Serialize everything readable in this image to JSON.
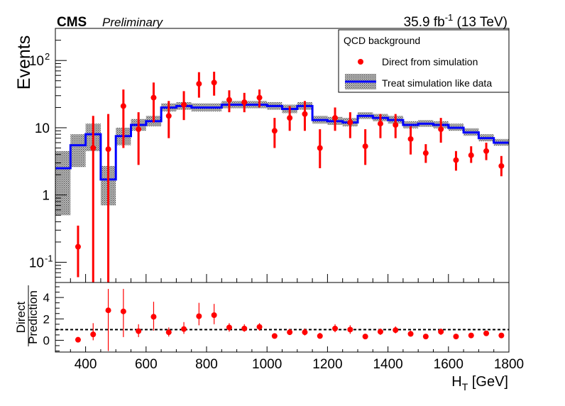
{
  "header": {
    "experiment": "CMS",
    "status": "Preliminary",
    "lumi_value": "35.9 fb",
    "lumi_exp": "-1",
    "lumi_energy": " (13 TeV)"
  },
  "legend": {
    "title": "QCD background",
    "direct_label": "Direct from simulation",
    "treat_label": "Treat simulation like data"
  },
  "colors": {
    "points": "#ff0000",
    "histogram": "#0000ff",
    "band": "#808080"
  },
  "chart_data": [
    {
      "type": "line",
      "panel": "main",
      "ylabel": "Events",
      "yscale": "log",
      "ylim": [
        0.05,
        300
      ],
      "xlim": [
        300,
        1800
      ],
      "yticks": [
        {
          "v": 0.1,
          "label": "10",
          "exp": "-1"
        },
        {
          "v": 1,
          "label": "1",
          "exp": ""
        },
        {
          "v": 10,
          "label": "10",
          "exp": ""
        },
        {
          "v": 100,
          "label": "10",
          "exp": "2"
        }
      ],
      "bin_edges": [
        300,
        350,
        400,
        450,
        500,
        550,
        600,
        650,
        700,
        750,
        800,
        850,
        900,
        950,
        1000,
        1050,
        1100,
        1150,
        1200,
        1250,
        1300,
        1350,
        1400,
        1450,
        1500,
        1550,
        1600,
        1650,
        1700,
        1750,
        1800
      ],
      "series": [
        {
          "name": "Treat simulation like data",
          "style": "step-with-band",
          "values": [
            2.5,
            5.5,
            8,
            1.7,
            7.5,
            11,
            12.5,
            20,
            21,
            20,
            20,
            22,
            22,
            22,
            21,
            19,
            21,
            13,
            12.5,
            12,
            15,
            14,
            13,
            11,
            11.5,
            11,
            10,
            8.5,
            7,
            6
          ],
          "band_low": [
            0.5,
            2.6,
            4.5,
            0.7,
            5.5,
            9,
            10.5,
            17.5,
            18.5,
            17.5,
            17.5,
            19.5,
            19.5,
            19.5,
            18.5,
            16.5,
            18.5,
            11.5,
            11,
            10.5,
            13.5,
            12.5,
            11.5,
            9.8,
            10.3,
            9.8,
            9,
            7.6,
            6.3,
            5.4
          ],
          "band_high": [
            4.5,
            8,
            11.5,
            2.7,
            10,
            13.5,
            15,
            23,
            24,
            23,
            23,
            25,
            25,
            25,
            24,
            22,
            24,
            15,
            14.5,
            14,
            17,
            16,
            15,
            12.5,
            13,
            12.5,
            11.5,
            9.8,
            8,
            6.8
          ]
        },
        {
          "name": "Direct from simulation",
          "style": "points-with-errors",
          "x": [
            375,
            425,
            475,
            525,
            575,
            625,
            675,
            725,
            775,
            825,
            875,
            925,
            975,
            1025,
            1075,
            1125,
            1175,
            1225,
            1275,
            1325,
            1375,
            1425,
            1475,
            1525,
            1575,
            1625,
            1675,
            1725,
            1775
          ],
          "y": [
            0.17,
            5,
            4.8,
            21,
            9.5,
            28,
            15,
            22,
            45,
            47,
            26,
            24,
            28,
            9,
            14,
            16,
            5,
            14,
            12,
            5.3,
            11.5,
            11,
            6.8,
            4.2,
            9.5,
            3.3,
            3.9,
            4.5,
            2.7
          ],
          "y_low": [
            0.06,
            0.04,
            0.04,
            5,
            2.8,
            12,
            7,
            13,
            28,
            30,
            17,
            17,
            20,
            5,
            9,
            9,
            2.5,
            9,
            7,
            2.8,
            7,
            7,
            4,
            3,
            6,
            2.3,
            3,
            3.3,
            1.9
          ],
          "y_high": [
            0.35,
            15,
            16,
            37,
            17,
            47,
            25,
            35,
            67,
            68,
            36,
            33,
            37,
            14,
            21,
            25,
            9.5,
            20,
            17,
            9.5,
            16,
            16,
            10.5,
            5.7,
            14,
            4.5,
            5.3,
            6,
            3.8
          ]
        }
      ]
    },
    {
      "type": "scatter",
      "panel": "ratio",
      "ylabel_top": "Direct",
      "ylabel_bottom": "Prediction",
      "xlabel_main": "H",
      "xlabel_sub": "T",
      "xlabel_unit": " [GeV]",
      "ylim": [
        -1.1,
        5.4
      ],
      "xlim": [
        300,
        1800
      ],
      "yticks": [
        0,
        2,
        4
      ],
      "xticks": [
        400,
        600,
        800,
        1000,
        1200,
        1400,
        1600,
        1800
      ],
      "reference_line": 1,
      "series": [
        {
          "name": "Direct/Prediction",
          "x": [
            375,
            425,
            475,
            525,
            575,
            625,
            675,
            725,
            775,
            825,
            875,
            925,
            975,
            1025,
            1075,
            1125,
            1175,
            1225,
            1275,
            1325,
            1375,
            1425,
            1475,
            1525,
            1575,
            1625,
            1675,
            1725,
            1775
          ],
          "y": [
            0.05,
            0.55,
            2.8,
            2.7,
            0.85,
            2.2,
            0.75,
            1.05,
            2.25,
            2.35,
            1.2,
            1.1,
            1.25,
            0.4,
            0.75,
            0.75,
            0.4,
            1.1,
            1.0,
            0.35,
            0.8,
            0.95,
            0.6,
            0.35,
            0.8,
            0.35,
            0.45,
            0.65,
            0.45
          ],
          "y_low": [
            0.0,
            0.0,
            -1.0,
            0.3,
            0.3,
            0.9,
            0.35,
            0.6,
            1.4,
            1.5,
            0.8,
            0.8,
            0.9,
            0.2,
            0.5,
            0.45,
            0.2,
            0.75,
            0.6,
            0.2,
            0.5,
            0.65,
            0.35,
            0.25,
            0.5,
            0.25,
            0.35,
            0.45,
            0.3
          ],
          "y_high": [
            0.1,
            1.6,
            4.8,
            4.8,
            1.5,
            3.6,
            1.2,
            1.7,
            3.5,
            3.4,
            1.6,
            1.5,
            1.6,
            0.6,
            1.05,
            1.1,
            0.7,
            1.5,
            1.4,
            0.6,
            1.1,
            1.3,
            0.9,
            0.5,
            1.1,
            0.5,
            0.6,
            0.85,
            0.65
          ]
        }
      ]
    }
  ]
}
